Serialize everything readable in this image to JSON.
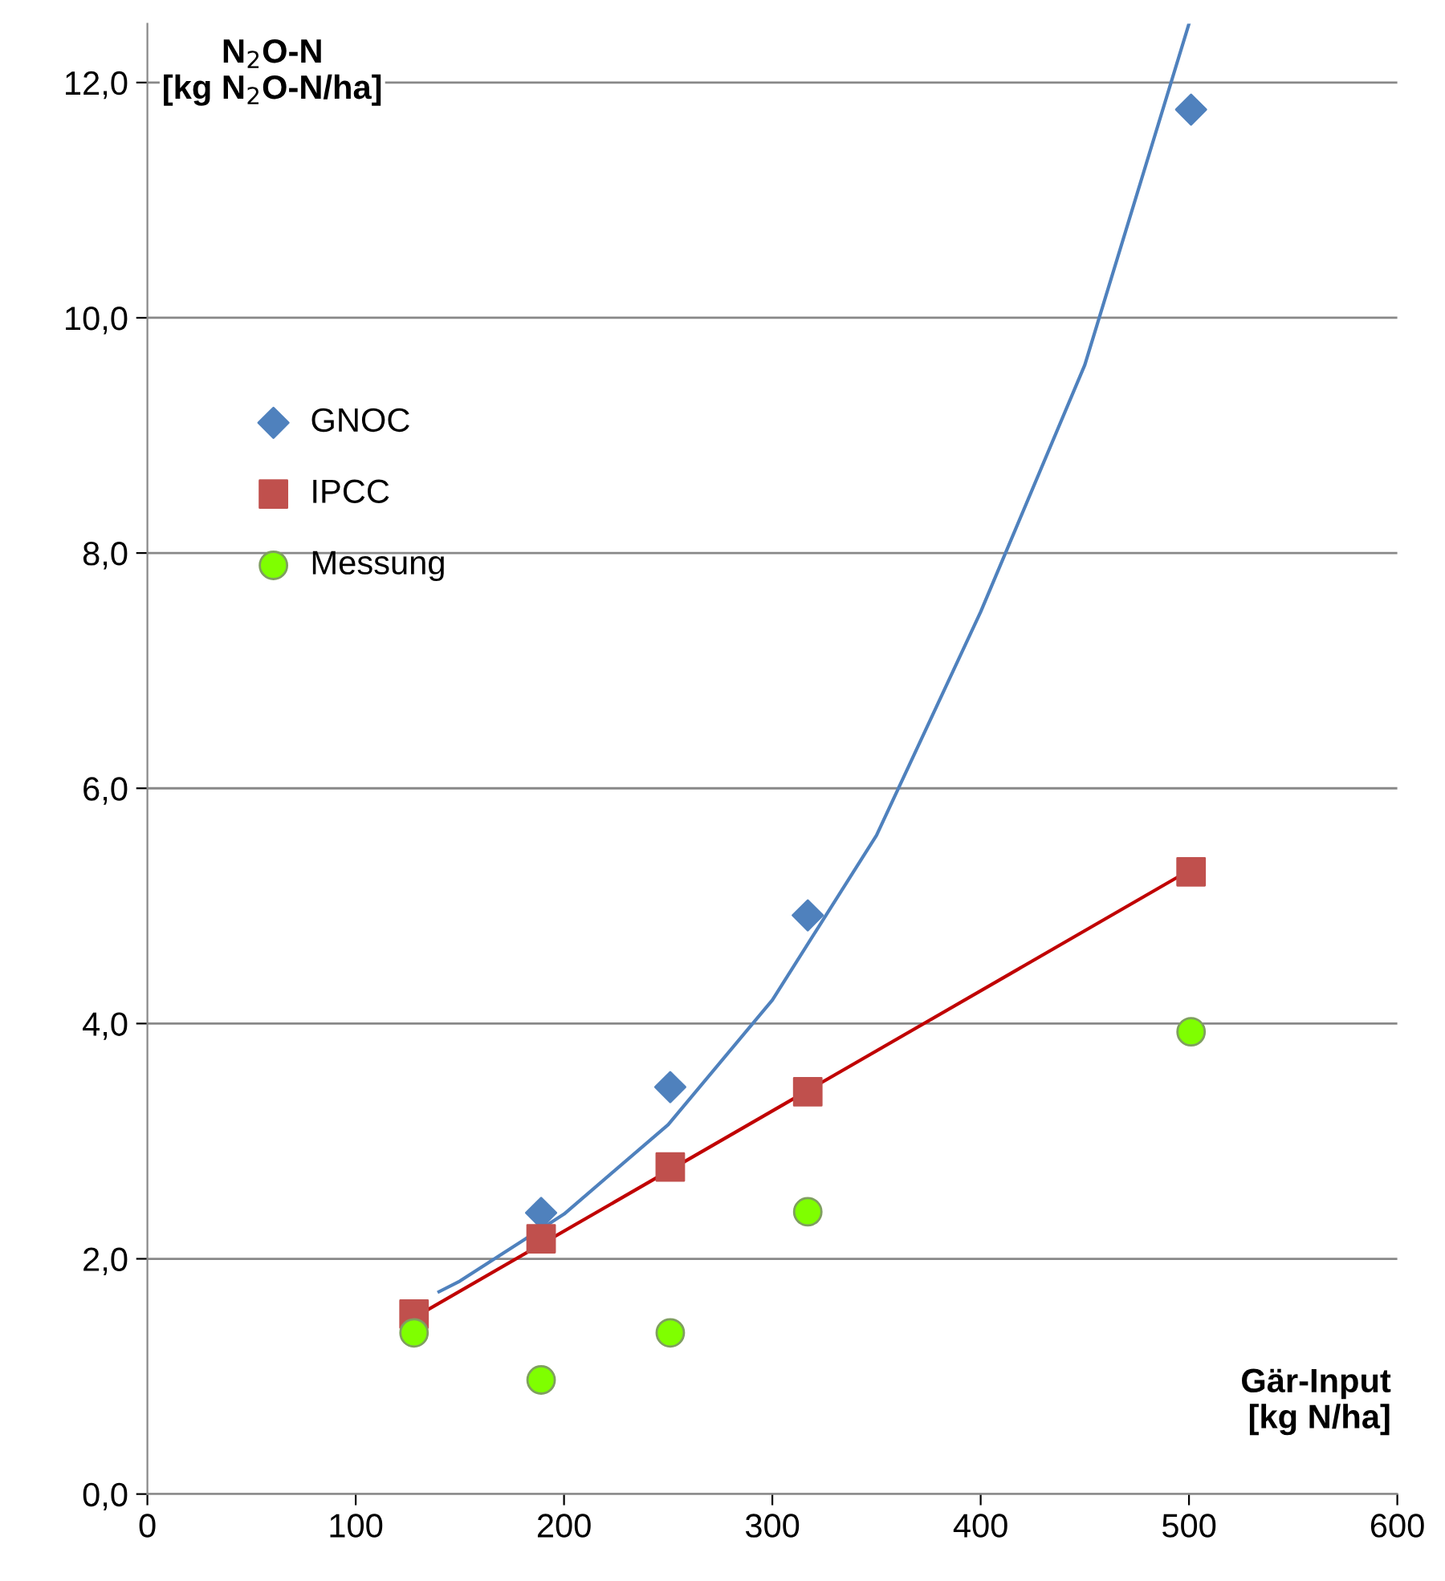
{
  "chart_data": {
    "type": "scatter",
    "xlabel": "Gär-Input\n[kg N/ha]",
    "ylabel": "N$_{2}$O-N\n[kg N$_{2}$O-N/ha]",
    "xlim": [
      0,
      600
    ],
    "xticks": [
      0,
      100,
      200,
      300,
      400,
      500,
      600
    ],
    "ylim": [
      0,
      12.5
    ],
    "yticks": [
      {
        "value": 0,
        "label": "0,0"
      },
      {
        "value": 2,
        "label": "2,0"
      },
      {
        "value": 4,
        "label": "4,0"
      },
      {
        "value": 6,
        "label": "6,0"
      },
      {
        "value": 8,
        "label": "8,0"
      },
      {
        "value": 10,
        "label": "10,0"
      },
      {
        "value": 12,
        "label": "12,0"
      }
    ],
    "grid": "y",
    "legend": "left",
    "series": [
      {
        "name": "GNOC",
        "color": "#4f81bd",
        "marker": "diamond",
        "x": [
          189,
          251,
          317,
          501
        ],
        "values": [
          2.39,
          3.46,
          4.92,
          11.77
        ]
      },
      {
        "name": "IPCC",
        "color": "#c0504d",
        "marker": "square",
        "x": [
          128,
          189,
          251,
          317,
          501
        ],
        "values": [
          1.53,
          2.17,
          2.78,
          3.42,
          5.29
        ]
      },
      {
        "name": "Messung",
        "color": "#7fff00",
        "marker": "circle",
        "x": [
          128,
          189,
          251,
          317,
          501
        ],
        "values": [
          1.37,
          0.97,
          1.37,
          2.4,
          3.93
        ]
      },
      {
        "type": "line",
        "color": "#4f81bd",
        "marker": "none",
        "x": [
          140,
          150,
          200,
          250,
          300,
          350,
          400,
          450,
          500
        ],
        "values": [
          1.72,
          1.81,
          2.38,
          3.14,
          4.2,
          5.6,
          7.5,
          9.6,
          12.5
        ]
      },
      {
        "type": "line",
        "color": "#c00000",
        "marker": "none",
        "x": [
          128,
          500
        ],
        "values": [
          1.5,
          5.3
        ]
      }
    ]
  }
}
